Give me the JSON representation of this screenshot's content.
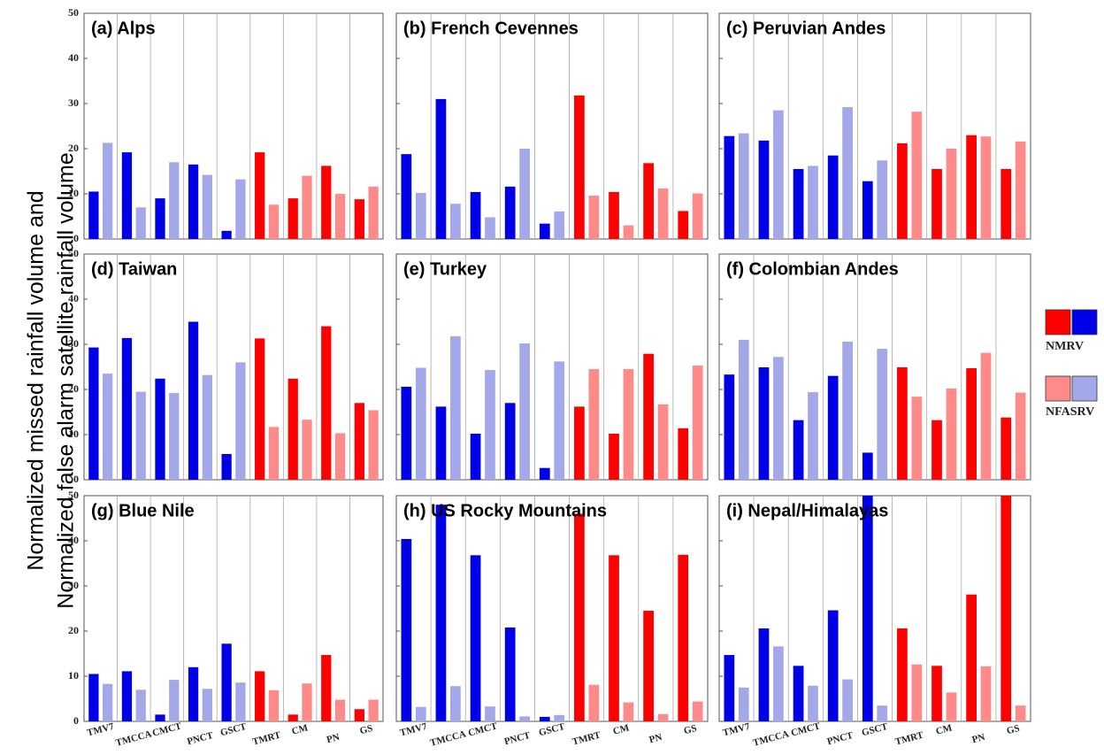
{
  "y_label": [
    "Normalized missed rainfall volume and",
    "Normalized false alarm satellite rainfall volume"
  ],
  "chart_data": [
    {
      "type": "bar",
      "title": "(a) Alps",
      "categories": [
        "TMV7",
        "TMCCA",
        "CMCT",
        "PNCT",
        "GSCT",
        "TMRT",
        "CM",
        "PN",
        "GS"
      ],
      "series": [
        {
          "name": "NMRV",
          "colors": [
            "#0000e6",
            "#0000e6",
            "#0000e6",
            "#0000e6",
            "#0000e6",
            "#ff0000",
            "#ff0000",
            "#ff0000",
            "#ff0000"
          ],
          "values": [
            10.5,
            19.2,
            9,
            16.5,
            1.8,
            19.2,
            9,
            16.2,
            8.8
          ]
        },
        {
          "name": "NFASRV",
          "colors": [
            "#a3a8e8",
            "#a3a8e8",
            "#a3a8e8",
            "#a3a8e8",
            "#a3a8e8",
            "#ff8a8a",
            "#ff8a8a",
            "#ff8a8a",
            "#ff8a8a"
          ],
          "values": [
            21.3,
            7,
            17,
            14.2,
            13.2,
            7.6,
            14,
            10,
            11.6
          ]
        }
      ],
      "ylim": [
        0,
        50
      ],
      "yticks": [
        0,
        10,
        20,
        30,
        40,
        50
      ]
    },
    {
      "type": "bar",
      "title": "(b) French Cevennes",
      "categories": [
        "TMV7",
        "TMCCA",
        "CMCT",
        "PNCT",
        "GSCT",
        "TMRT",
        "CM",
        "PN",
        "GS"
      ],
      "series": [
        {
          "name": "NMRV",
          "colors": [
            "#0000e6",
            "#0000e6",
            "#0000e6",
            "#0000e6",
            "#0000e6",
            "#ff0000",
            "#ff0000",
            "#ff0000",
            "#ff0000"
          ],
          "values": [
            18.8,
            31,
            10.4,
            11.6,
            3.4,
            31.8,
            10.4,
            16.8,
            6.2
          ]
        },
        {
          "name": "NFASRV",
          "colors": [
            "#a3a8e8",
            "#a3a8e8",
            "#a3a8e8",
            "#a3a8e8",
            "#a3a8e8",
            "#ff8a8a",
            "#ff8a8a",
            "#ff8a8a",
            "#ff8a8a"
          ],
          "values": [
            10.2,
            7.8,
            4.8,
            20,
            6.1,
            9.6,
            3,
            11.2,
            10.1
          ]
        }
      ],
      "ylim": [
        0,
        50
      ],
      "yticks": [
        0,
        10,
        20,
        30,
        40,
        50
      ]
    },
    {
      "type": "bar",
      "title": "(c) Peruvian Andes",
      "categories": [
        "TMV7",
        "TMCCA",
        "CMCT",
        "PNCT",
        "GSCT",
        "TMRT",
        "CM",
        "PN",
        "GS"
      ],
      "series": [
        {
          "name": "NMRV",
          "colors": [
            "#0000e6",
            "#0000e6",
            "#0000e6",
            "#0000e6",
            "#0000e6",
            "#ff0000",
            "#ff0000",
            "#ff0000",
            "#ff0000"
          ],
          "values": [
            22.8,
            21.8,
            15.5,
            18.5,
            12.8,
            21.2,
            15.5,
            23,
            15.5
          ]
        },
        {
          "name": "NFASRV",
          "colors": [
            "#a3a8e8",
            "#a3a8e8",
            "#a3a8e8",
            "#a3a8e8",
            "#a3a8e8",
            "#ff8a8a",
            "#ff8a8a",
            "#ff8a8a",
            "#ff8a8a"
          ],
          "values": [
            23.4,
            28.5,
            16.2,
            29.2,
            17.4,
            28.2,
            20,
            22.7,
            21.6
          ]
        }
      ],
      "ylim": [
        0,
        50
      ],
      "yticks": [
        0,
        10,
        20,
        30,
        40,
        50
      ]
    },
    {
      "type": "bar",
      "title": "(d) Taiwan",
      "categories": [
        "TMV7",
        "TMCCA",
        "CMCT",
        "PNCT",
        "GSCT",
        "TMRT",
        "CM",
        "PN",
        "GS"
      ],
      "series": [
        {
          "name": "NMRV",
          "colors": [
            "#0000e6",
            "#0000e6",
            "#0000e6",
            "#0000e6",
            "#0000e6",
            "#ff0000",
            "#ff0000",
            "#ff0000",
            "#ff0000"
          ],
          "values": [
            29.3,
            31.4,
            22.4,
            35,
            5.7,
            31.3,
            22.4,
            34,
            17
          ]
        },
        {
          "name": "NFASRV",
          "colors": [
            "#a3a8e8",
            "#a3a8e8",
            "#a3a8e8",
            "#a3a8e8",
            "#a3a8e8",
            "#ff8a8a",
            "#ff8a8a",
            "#ff8a8a",
            "#ff8a8a"
          ],
          "values": [
            23.5,
            19.5,
            19.2,
            23.2,
            26,
            11.7,
            13.3,
            10.3,
            15.4
          ]
        }
      ],
      "ylim": [
        0,
        50
      ],
      "yticks": [
        0,
        10,
        20,
        30,
        40,
        50
      ]
    },
    {
      "type": "bar",
      "title": "(e) Turkey",
      "categories": [
        "TMV7",
        "TMCCA",
        "CMCT",
        "PNCT",
        "GSCT",
        "TMRT",
        "CM",
        "PN",
        "GS"
      ],
      "series": [
        {
          "name": "NMRV",
          "colors": [
            "#0000e6",
            "#0000e6",
            "#0000e6",
            "#0000e6",
            "#0000e6",
            "#ff0000",
            "#ff0000",
            "#ff0000",
            "#ff0000"
          ],
          "values": [
            20.6,
            16.2,
            10.2,
            17,
            2.6,
            16.2,
            10.2,
            27.9,
            11.4
          ]
        },
        {
          "name": "NFASRV",
          "colors": [
            "#a3a8e8",
            "#a3a8e8",
            "#a3a8e8",
            "#a3a8e8",
            "#a3a8e8",
            "#ff8a8a",
            "#ff8a8a",
            "#ff8a8a",
            "#ff8a8a"
          ],
          "values": [
            24.8,
            31.8,
            24.3,
            30.2,
            26.2,
            24.5,
            24.5,
            16.7,
            25.3
          ]
        }
      ],
      "ylim": [
        0,
        50
      ],
      "yticks": [
        0,
        10,
        20,
        30,
        40,
        50
      ]
    },
    {
      "type": "bar",
      "title": "(f) Colombian Andes",
      "categories": [
        "TMV7",
        "TMCCA",
        "CMCT",
        "PNCT",
        "GSCT",
        "TMRT",
        "CM",
        "PN",
        "GS"
      ],
      "series": [
        {
          "name": "NMRV",
          "colors": [
            "#0000e6",
            "#0000e6",
            "#0000e6",
            "#0000e6",
            "#0000e6",
            "#ff0000",
            "#ff0000",
            "#ff0000",
            "#ff0000"
          ],
          "values": [
            23.3,
            24.9,
            13.2,
            23,
            6,
            24.9,
            13.2,
            24.7,
            13.8
          ]
        },
        {
          "name": "NFASRV",
          "colors": [
            "#a3a8e8",
            "#a3a8e8",
            "#a3a8e8",
            "#a3a8e8",
            "#a3a8e8",
            "#ff8a8a",
            "#ff8a8a",
            "#ff8a8a",
            "#ff8a8a"
          ],
          "values": [
            31,
            27.2,
            19.4,
            30.6,
            29,
            18.4,
            20.2,
            28.1,
            19.3
          ]
        }
      ],
      "ylim": [
        0,
        50
      ],
      "yticks": [
        0,
        10,
        20,
        30,
        40,
        50
      ]
    },
    {
      "type": "bar",
      "title": "(g) Blue Nile",
      "categories": [
        "TMV7",
        "TMCCA",
        "CMCT",
        "PNCT",
        "GSCT",
        "TMRT",
        "CM",
        "PN",
        "GS"
      ],
      "series": [
        {
          "name": "NMRV",
          "colors": [
            "#0000e6",
            "#0000e6",
            "#0000e6",
            "#0000e6",
            "#0000e6",
            "#ff0000",
            "#ff0000",
            "#ff0000",
            "#ff0000"
          ],
          "values": [
            10.5,
            11.1,
            1.5,
            12,
            17.2,
            11.1,
            1.5,
            14.7,
            2.7
          ]
        },
        {
          "name": "NFASRV",
          "colors": [
            "#a3a8e8",
            "#a3a8e8",
            "#a3a8e8",
            "#a3a8e8",
            "#a3a8e8",
            "#ff8a8a",
            "#ff8a8a",
            "#ff8a8a",
            "#ff8a8a"
          ],
          "values": [
            8.3,
            7,
            9.2,
            7.2,
            8.6,
            6.9,
            8.4,
            4.8,
            4.8
          ]
        }
      ],
      "ylim": [
        0,
        50
      ],
      "yticks": [
        0,
        10,
        20,
        30,
        40,
        50
      ]
    },
    {
      "type": "bar",
      "title": "(h) US Rocky Mountains",
      "categories": [
        "TMV7",
        "TMCCA",
        "CMCT",
        "PNCT",
        "GSCT",
        "TMRT",
        "CM",
        "PN",
        "GS"
      ],
      "series": [
        {
          "name": "NMRV",
          "colors": [
            "#0000e6",
            "#0000e6",
            "#0000e6",
            "#0000e6",
            "#0000e6",
            "#ff0000",
            "#ff0000",
            "#ff0000",
            "#ff0000"
          ],
          "values": [
            40.4,
            48,
            36.8,
            20.8,
            1,
            46,
            36.8,
            24.5,
            36.9
          ]
        },
        {
          "name": "NFASRV",
          "colors": [
            "#a3a8e8",
            "#a3a8e8",
            "#a3a8e8",
            "#a3a8e8",
            "#a3a8e8",
            "#ff8a8a",
            "#ff8a8a",
            "#ff8a8a",
            "#ff8a8a"
          ],
          "values": [
            3.2,
            7.8,
            3.3,
            1.1,
            1.4,
            8.1,
            4.2,
            1.6,
            4.4
          ]
        }
      ],
      "ylim": [
        0,
        50
      ],
      "yticks": [
        0,
        10,
        20,
        30,
        40,
        50
      ]
    },
    {
      "type": "bar",
      "title": "(i) Nepal/Himalayas",
      "categories": [
        "TMV7",
        "TMCCA",
        "CMCT",
        "PNCT",
        "GSCT",
        "TMRT",
        "CM",
        "PN",
        "GS"
      ],
      "series": [
        {
          "name": "NMRV",
          "colors": [
            "#0000e6",
            "#0000e6",
            "#0000e6",
            "#0000e6",
            "#0000e6",
            "#ff0000",
            "#ff0000",
            "#ff0000",
            "#ff0000"
          ],
          "values": [
            14.7,
            20.6,
            12.3,
            24.6,
            50,
            20.6,
            12.3,
            28.1,
            50
          ]
        },
        {
          "name": "NFASRV",
          "colors": [
            "#a3a8e8",
            "#a3a8e8",
            "#a3a8e8",
            "#a3a8e8",
            "#a3a8e8",
            "#ff8a8a",
            "#ff8a8a",
            "#ff8a8a",
            "#ff8a8a"
          ],
          "values": [
            7.5,
            16.6,
            7.9,
            9.3,
            3.5,
            12.6,
            6.4,
            12.2,
            3.5
          ]
        }
      ],
      "ylim": [
        0,
        50
      ],
      "yticks": [
        0,
        10,
        20,
        30,
        40,
        50
      ]
    }
  ]
}
